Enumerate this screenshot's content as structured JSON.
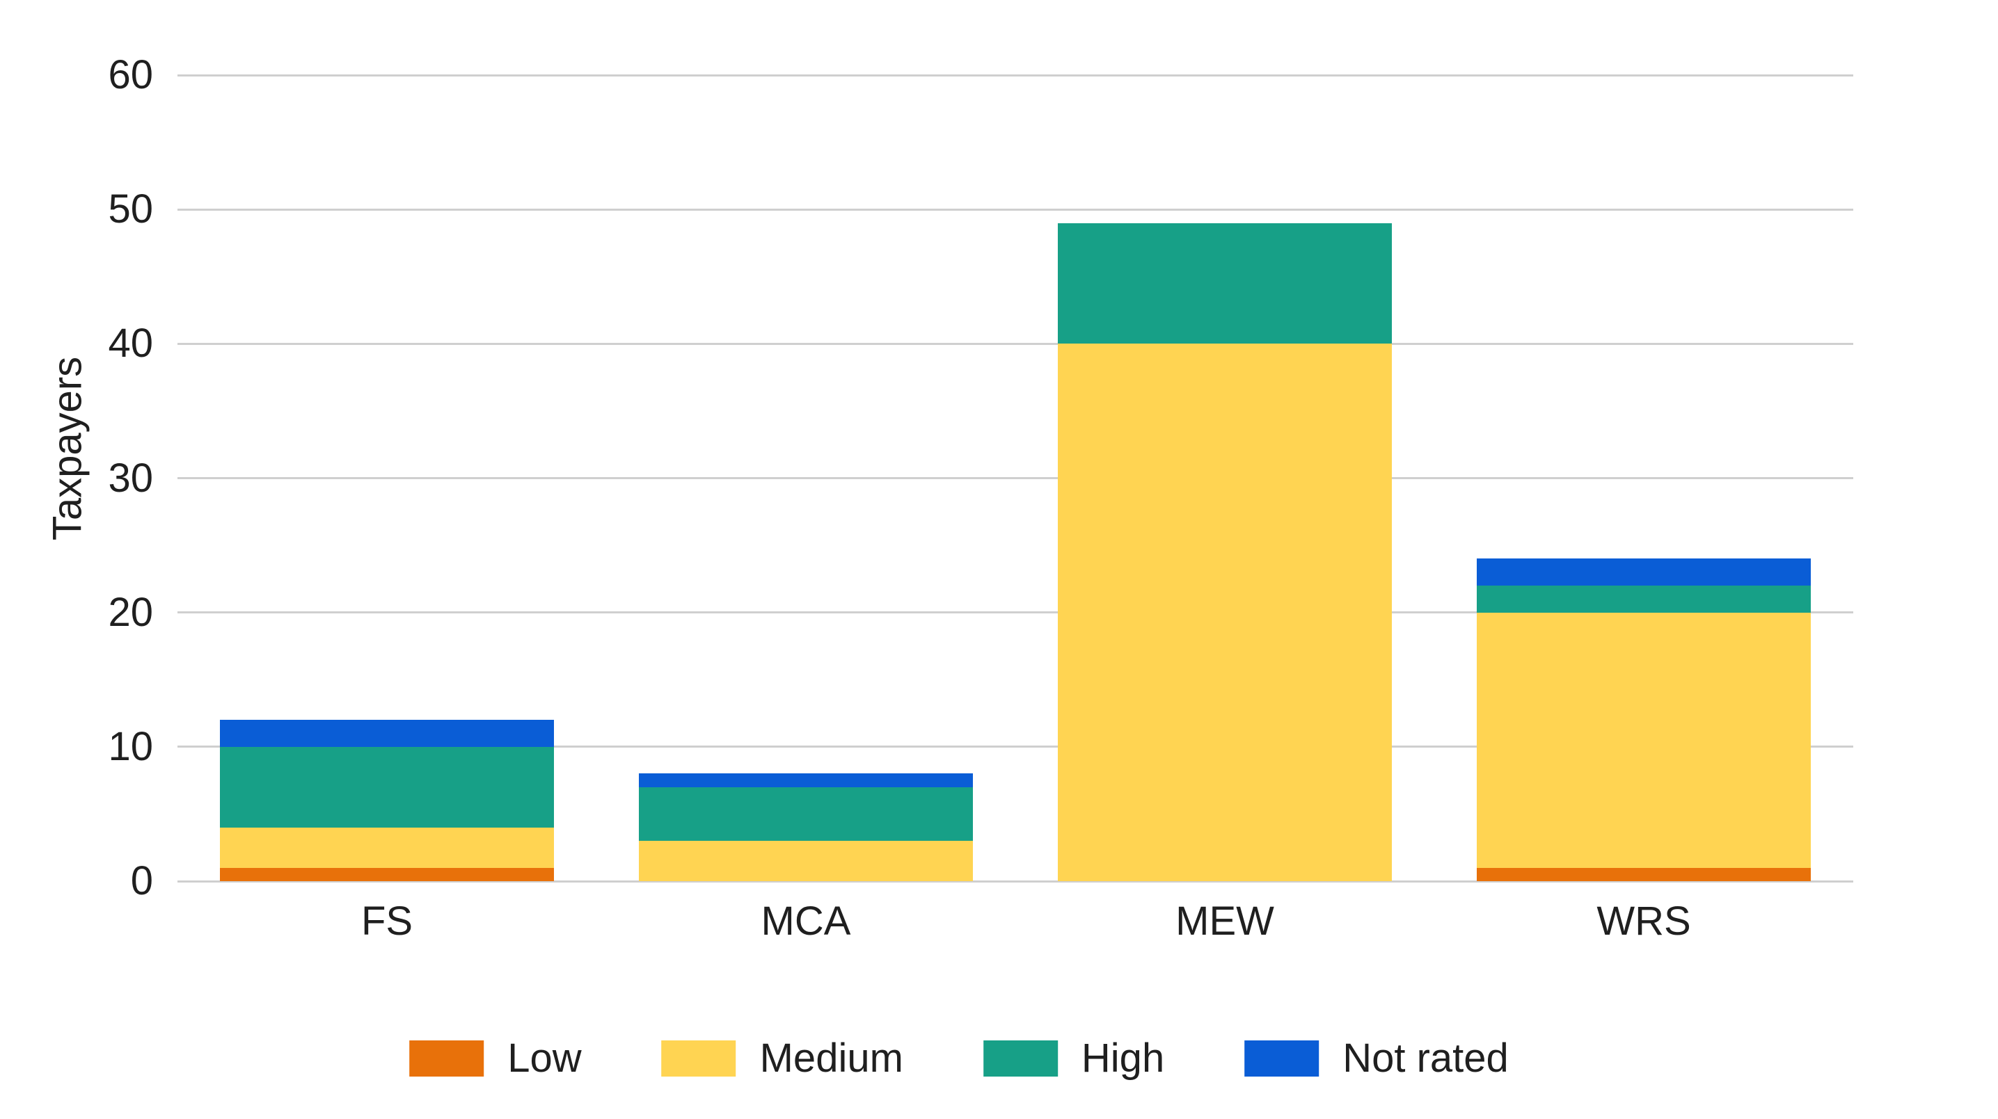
{
  "axis": {
    "y_title": "Taxpayers"
  },
  "colors": {
    "low": "#E8710A",
    "medium": "#FFD452",
    "high": "#17A087",
    "not_rated": "#0A5DD6",
    "gridline": "#CFCFCF",
    "text": "#1F1F1F",
    "background": "#FFFFFF"
  },
  "legend": {
    "position": "bottom",
    "items": [
      "Low",
      "Medium",
      "High",
      "Not rated"
    ]
  },
  "chart_data": {
    "type": "bar",
    "stacked": true,
    "title": "",
    "xlabel": "",
    "ylabel": "Taxpayers",
    "categories": [
      "FS",
      "MCA",
      "MEW",
      "WRS"
    ],
    "series": [
      {
        "name": "Low",
        "color": "#E8710A",
        "values": [
          1,
          0,
          0,
          1
        ]
      },
      {
        "name": "Medium",
        "color": "#FFD452",
        "values": [
          3,
          3,
          40,
          19
        ]
      },
      {
        "name": "High",
        "color": "#17A087",
        "values": [
          6,
          4,
          9,
          2
        ]
      },
      {
        "name": "Not rated",
        "color": "#0A5DD6",
        "values": [
          2,
          1,
          0,
          2
        ]
      }
    ],
    "totals": [
      12,
      8,
      49,
      24
    ],
    "ylim": [
      0,
      60
    ],
    "yticks": [
      0,
      10,
      20,
      30,
      40,
      50,
      60
    ],
    "grid": true,
    "legend_position": "bottom"
  }
}
